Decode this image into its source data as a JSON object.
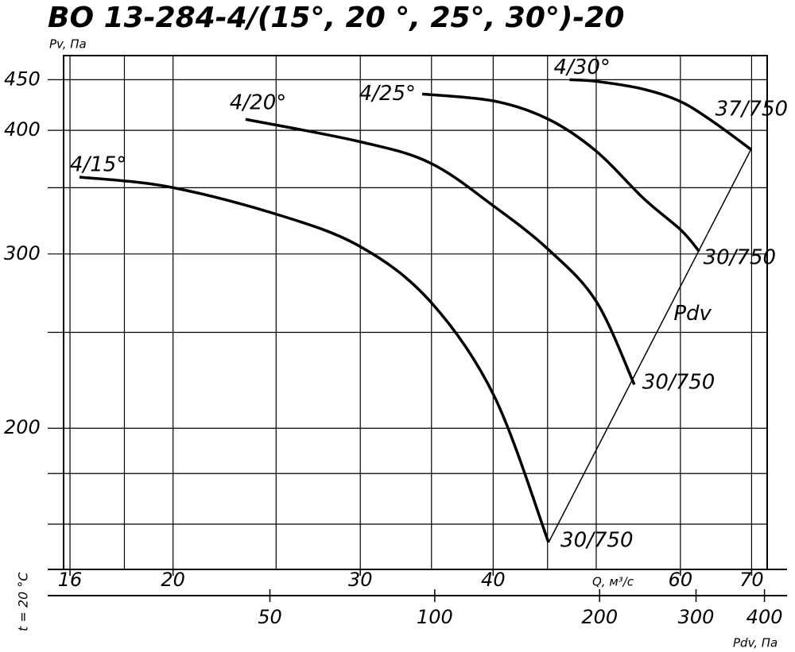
{
  "chart_data": {
    "type": "line",
    "title": "ВО 13-284-4/(15°, 20 °, 25°, 30°)-20",
    "ylabel": "Pv, Па",
    "xlabel": "Q, м³/с",
    "x2label": "Pdv, Па",
    "note": "t = 20 °C",
    "log_x": true,
    "log_y": true,
    "grid": true,
    "color": "#000000",
    "xlim": [
      15.78,
      72.4
    ],
    "xticks": [
      16,
      20,
      30,
      40,
      60,
      70
    ],
    "xgrid_minor": [
      18,
      25,
      35,
      45,
      50
    ],
    "ylim": [
      144,
      476
    ],
    "yticks": [
      200,
      300,
      400,
      450
    ],
    "ygrid_minor": [
      160,
      180,
      250,
      350
    ],
    "x2lim": [
      21.0,
      404.6
    ],
    "x2ticks": [
      50,
      100,
      200,
      300,
      400
    ],
    "series": [
      {
        "name": "4/15°",
        "end_label": "30/750",
        "x": [
          16.33,
          19.74,
          24.8,
          29.9,
          34.9,
          40.1,
          45.1
        ],
        "values": [
          358.8,
          351,
          330,
          305.8,
          268.7,
          215.4,
          153.3
        ]
      },
      {
        "name": "4/20°",
        "end_label": "30/750",
        "x": [
          23.4,
          29.9,
          34.9,
          40.1,
          45.1,
          50,
          54.3
        ],
        "values": [
          410.4,
          389.8,
          370.8,
          335,
          303,
          268.7,
          221.4
        ]
      },
      {
        "name": "4/25°",
        "end_label": "30/750",
        "x": [
          34.3,
          40.1,
          45.1,
          50,
          55.4,
          60.1,
          62.5
        ],
        "values": [
          435.3,
          428.2,
          410.4,
          381.1,
          341.4,
          317,
          301.7
        ]
      },
      {
        "name": "4/30°",
        "end_label": "37/750",
        "x": [
          47.2,
          50,
          55.4,
          60.1,
          64.7,
          69.9
        ],
        "values": [
          450,
          448.3,
          440.2,
          427.4,
          406.7,
          382.6
        ]
      }
    ],
    "pdv_line": {
      "name": "Pdv",
      "x": [
        45.1,
        69.9
      ],
      "values": [
        153.3,
        382.6
      ]
    }
  }
}
